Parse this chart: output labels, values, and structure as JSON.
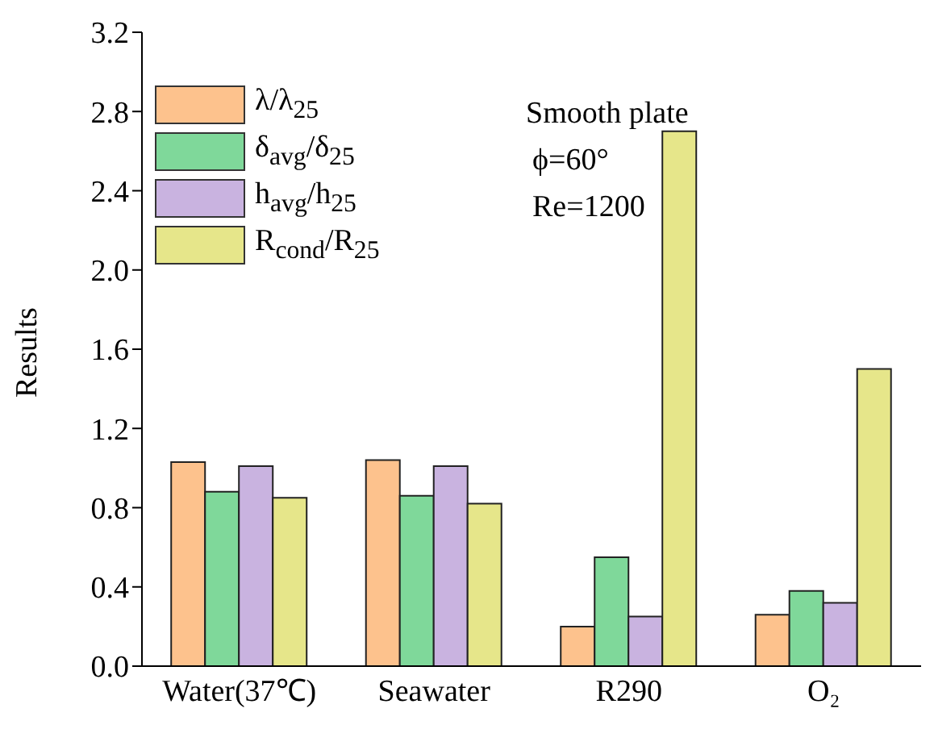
{
  "chart_data": {
    "type": "bar",
    "ylabel": "Results",
    "categories": [
      "Water(37℃)",
      "Seawater",
      "R290",
      "O₂"
    ],
    "series": [
      {
        "name": "λ/λ$_{25}$",
        "color": "#fdc28d",
        "values": [
          1.03,
          1.04,
          0.2,
          0.26
        ]
      },
      {
        "name": "δ$_{avg}$/δ$_{25}$",
        "color": "#7fd89a",
        "values": [
          0.88,
          0.86,
          0.55,
          0.38
        ]
      },
      {
        "name": "h$_{avg}$/h$_{25}$",
        "color": "#c9b3e0",
        "values": [
          1.01,
          1.01,
          0.25,
          0.32
        ]
      },
      {
        "name": "R$_{cond}$/R$_{25}$",
        "color": "#e6e68a",
        "values": [
          0.85,
          0.82,
          2.7,
          1.5
        ]
      }
    ],
    "ylim": [
      0,
      3.2
    ],
    "yticks": [
      {
        "value": 0,
        "label": "0.0"
      },
      {
        "value": 0.4,
        "label": "0.4"
      },
      {
        "value": 0.8,
        "label": "0.8"
      },
      {
        "value": 1.2,
        "label": "1.2"
      },
      {
        "value": 1.6,
        "label": "1.6"
      },
      {
        "value": 2.0,
        "label": "2.0"
      },
      {
        "value": 2.4,
        "label": "2.4"
      },
      {
        "value": 2.8,
        "label": "2.8"
      },
      {
        "value": 3.2,
        "label": "3.2"
      }
    ],
    "legend": "top left",
    "annotations": [
      "Smooth plate",
      "ϕ=60°",
      "Re=1200"
    ]
  }
}
